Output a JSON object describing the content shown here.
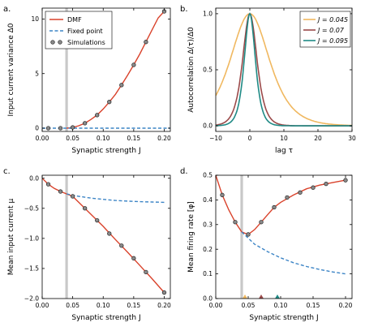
{
  "chart_data": [
    {
      "type": "line",
      "panel": "a.",
      "xlabel": "Synaptic strength J",
      "ylabel": "Input current variance Δ0",
      "xlim": [
        0,
        0.21
      ],
      "ylim": [
        -0.3,
        11
      ],
      "xticks": [
        "0.00",
        "0.05",
        "0.10",
        "0.15",
        "0.20"
      ],
      "yticks": [
        "0",
        "5",
        "10"
      ],
      "vline": 0.04,
      "legend_position": "top-left",
      "grid": false,
      "series": [
        {
          "name": "DMF",
          "style": "solid",
          "color": "#d9422b",
          "x": [
            0.04,
            0.05,
            0.06,
            0.07,
            0.08,
            0.09,
            0.1,
            0.11,
            0.12,
            0.13,
            0.14,
            0.15,
            0.16,
            0.17,
            0.18,
            0.19,
            0.2
          ],
          "y": [
            0,
            0.06,
            0.22,
            0.45,
            0.8,
            1.2,
            1.75,
            2.4,
            3.1,
            3.95,
            4.85,
            5.8,
            6.8,
            7.9,
            9.0,
            10.1,
            10.7
          ]
        },
        {
          "name": "Fixed point",
          "style": "dashed",
          "color": "#3d85c6",
          "x": [
            0.0,
            0.21
          ],
          "y": [
            0,
            0
          ]
        },
        {
          "name": "Simulations",
          "style": "markers",
          "color": "#8a8a8a",
          "x": [
            0.01,
            0.03,
            0.05,
            0.07,
            0.09,
            0.11,
            0.13,
            0.15,
            0.17,
            0.2
          ],
          "y": [
            0,
            0,
            0.07,
            0.45,
            1.2,
            2.4,
            3.95,
            5.8,
            7.9,
            10.7
          ]
        }
      ]
    },
    {
      "type": "line",
      "panel": "b.",
      "xlabel": "lag τ",
      "ylabel": "Autocorrelation Δ(τ)/Δ0",
      "xlim": [
        -10,
        30
      ],
      "ylim": [
        -0.05,
        1.05
      ],
      "xticks": [
        "−10",
        "0",
        "10",
        "20",
        "30"
      ],
      "yticks": [
        "0.0",
        "0.5",
        "1.0"
      ],
      "legend_position": "top-right",
      "grid": false,
      "series": [
        {
          "name": "J = 0.045",
          "color": "#f0b860",
          "tau": 6.0
        },
        {
          "name": "J = 0.07",
          "color": "#9b4a4a",
          "tau": 2.2
        },
        {
          "name": "J = 0.095",
          "color": "#1f8a85",
          "tau": 1.7
        }
      ]
    },
    {
      "type": "line",
      "panel": "c.",
      "xlabel": "Synaptic strength J",
      "ylabel": "Mean input current μ",
      "xlim": [
        0,
        0.21
      ],
      "ylim": [
        -2.0,
        0.05
      ],
      "xticks": [
        "0.00",
        "0.05",
        "0.10",
        "0.15",
        "0.20"
      ],
      "yticks": [
        "0.0",
        "−0.5",
        "−1.0",
        "−1.5",
        "−2.0"
      ],
      "vline": 0.04,
      "grid": false,
      "series": [
        {
          "name": "DMF",
          "style": "solid",
          "color": "#d9422b",
          "x": [
            0.0,
            0.01,
            0.02,
            0.03,
            0.04,
            0.05,
            0.06,
            0.08,
            0.1,
            0.12,
            0.14,
            0.16,
            0.18,
            0.2
          ],
          "y": [
            0.0,
            -0.1,
            -0.17,
            -0.22,
            -0.26,
            -0.3,
            -0.4,
            -0.6,
            -0.8,
            -1.02,
            -1.23,
            -1.45,
            -1.67,
            -1.9
          ]
        },
        {
          "name": "Fixed point",
          "style": "dashed",
          "color": "#3d85c6",
          "x": [
            0.04,
            0.06,
            0.08,
            0.1,
            0.12,
            0.14,
            0.16,
            0.18,
            0.2
          ],
          "y": [
            -0.26,
            -0.3,
            -0.33,
            -0.35,
            -0.37,
            -0.38,
            -0.39,
            -0.395,
            -0.4
          ]
        },
        {
          "name": "Simulations",
          "style": "markers",
          "color": "#8a8a8a",
          "x": [
            0.01,
            0.03,
            0.05,
            0.07,
            0.09,
            0.11,
            0.13,
            0.15,
            0.17,
            0.2
          ],
          "y": [
            -0.1,
            -0.22,
            -0.3,
            -0.5,
            -0.7,
            -0.92,
            -1.12,
            -1.33,
            -1.56,
            -1.9
          ]
        }
      ]
    },
    {
      "type": "line",
      "panel": "d.",
      "xlabel": "Synaptic strength J",
      "ylabel": "Mean firing rate [φ]",
      "xlim": [
        0,
        0.21
      ],
      "ylim": [
        0.0,
        0.5
      ],
      "xticks": [
        "0.00",
        "0.05",
        "0.10",
        "0.15",
        "0.20"
      ],
      "yticks": [
        "0.0",
        "0.1",
        "0.2",
        "0.3",
        "0.4",
        "0.5"
      ],
      "vline": 0.04,
      "grid": false,
      "markers_on_axis": [
        {
          "x": 0.045,
          "color": "#f0b860"
        },
        {
          "x": 0.07,
          "color": "#9b4a4a"
        },
        {
          "x": 0.095,
          "color": "#1f8a85"
        }
      ],
      "series": [
        {
          "name": "DMF",
          "style": "solid",
          "color": "#d9422b",
          "x": [
            0.0,
            0.01,
            0.02,
            0.03,
            0.04,
            0.05,
            0.06,
            0.07,
            0.08,
            0.09,
            0.1,
            0.12,
            0.14,
            0.16,
            0.18,
            0.2
          ],
          "y": [
            0.5,
            0.42,
            0.36,
            0.31,
            0.27,
            0.26,
            0.28,
            0.31,
            0.34,
            0.37,
            0.39,
            0.42,
            0.445,
            0.46,
            0.47,
            0.48
          ]
        },
        {
          "name": "Fixed point",
          "style": "dashed",
          "color": "#3d85c6",
          "x": [
            0.04,
            0.06,
            0.08,
            0.1,
            0.12,
            0.14,
            0.16,
            0.18,
            0.2
          ],
          "y": [
            0.27,
            0.22,
            0.19,
            0.165,
            0.145,
            0.13,
            0.118,
            0.108,
            0.1
          ]
        },
        {
          "name": "Simulations",
          "style": "markers",
          "color": "#8a8a8a",
          "x": [
            0.01,
            0.03,
            0.05,
            0.07,
            0.09,
            0.11,
            0.13,
            0.15,
            0.17,
            0.2
          ],
          "y": [
            0.42,
            0.31,
            0.26,
            0.31,
            0.37,
            0.41,
            0.43,
            0.45,
            0.465,
            0.48
          ]
        }
      ]
    }
  ],
  "legend_a": {
    "dmf": "DMF",
    "fixed": "Fixed point",
    "sims": "Simulations"
  }
}
